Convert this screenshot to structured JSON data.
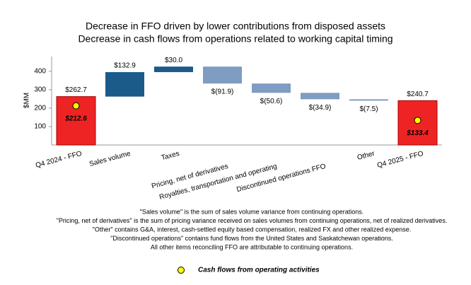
{
  "chart_data": {
    "type": "waterfall",
    "title": "Decrease in FFO driven by lower contributions from disposed assets",
    "subtitle": "Decrease in cash flows from operations related to working capital timing",
    "y_label": "$MM",
    "categories": [
      "Q4 2024 - FFO",
      "Sales volume",
      "Taxes",
      "Pricing, net of derivatives",
      "Royalties, transportation and operating",
      "Discontinued operations FFO",
      "Other",
      "Q4 2025 - FFO"
    ],
    "measure": [
      "total",
      "relative",
      "relative",
      "relative",
      "relative",
      "relative",
      "relative",
      "total"
    ],
    "values": [
      262.7,
      132.9,
      30.0,
      -91.9,
      -50.6,
      -34.9,
      -7.5,
      240.7
    ],
    "value_labels": [
      "$262.7",
      "$132.9",
      "$30.0",
      "$(91.9)",
      "$(50.6)",
      "$(34.9)",
      "$(7.5)",
      "$240.7"
    ],
    "colors": [
      "#ee2424",
      "#1a5b8a",
      "#1a5b8a",
      "#7f9cc2",
      "#7f9cc2",
      "#7f9cc2",
      "#7f9cc2",
      "#ee2424"
    ],
    "series": [
      {
        "name": "Cash flows from operating activities",
        "color": "#ffff00",
        "values": [
          212.6,
          null,
          null,
          null,
          null,
          null,
          null,
          133.4
        ],
        "value_labels": [
          "$212.6",
          null,
          null,
          null,
          null,
          null,
          null,
          "$133.4"
        ]
      }
    ],
    "ylim": [
      0,
      480
    ],
    "yticks": [
      100,
      200,
      300,
      400
    ],
    "notes": [
      "\"Sales volume\" is the sum of sales volume variance from continuing operations.",
      "\"Pricing, net of derivatives\" is the sum of pricing variance received on sales volumes from continuing operations, net of realized derivatives.",
      "\"Other\" contains G&A, interest, cash-settled equity based compensation,  realized FX and other realized expense.",
      "\"Discontinued operations\" contains fund flows from the United States and Saskatchewan operations.",
      "All other items reconciling FFO are attributable to continuing operations."
    ]
  }
}
